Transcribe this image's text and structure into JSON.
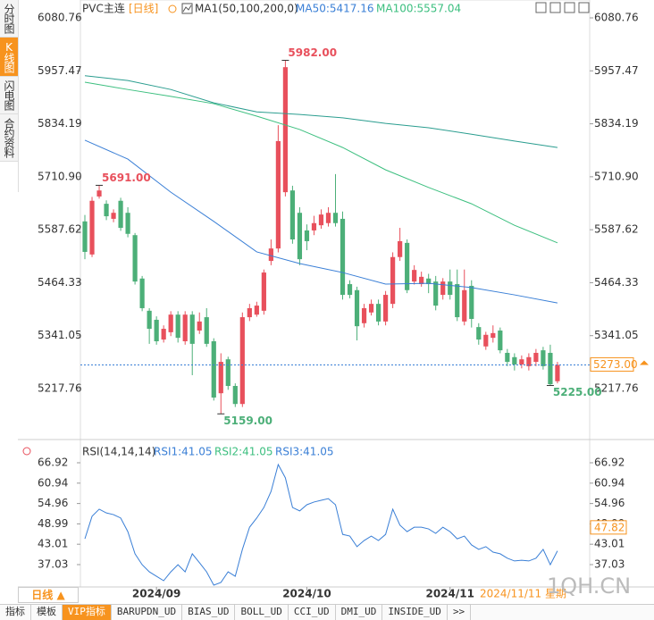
{
  "sidebar_tabs": [
    "分时图",
    "K线图",
    "闪电图",
    "合约资料"
  ],
  "header": {
    "symbol": "PVC主连",
    "period": "[日线]",
    "indicator": "MA1(50,100,200,0)"
  },
  "chart_data": [
    {
      "type": "candlestick",
      "open": [
        5607,
        5530,
        5665,
        5648,
        5613,
        5655,
        5627,
        5575,
        5474,
        5399,
        5378,
        5332,
        5349,
        5390,
        5328,
        5390,
        5353,
        5384,
        5328,
        5207,
        5286,
        5224,
        5182,
        5384,
        5390,
        5399,
        5515,
        5544,
        5675,
        5679,
        5627,
        5586,
        5586,
        5598,
        5603,
        5627,
        5613,
        5461,
        5447,
        5370,
        5395,
        5415,
        5374,
        5415,
        5524,
        5557,
        5467,
        5461,
        5474,
        5467,
        5436,
        5467,
        5461,
        5374,
        5457,
        5361,
        5316,
        5336,
        5353,
        5301,
        5291,
        5274,
        5270,
        5280,
        5307,
        5301,
        5235
      ],
      "high": [
        5622,
        5664,
        5691,
        5656,
        5635,
        5662,
        5640,
        5580,
        5480,
        5405,
        5386,
        5365,
        5398,
        5398,
        5398,
        5398,
        5395,
        5405,
        5335,
        5300,
        5292,
        5230,
        5395,
        5415,
        5420,
        5495,
        5565,
        5831,
        5982,
        5690,
        5640,
        5600,
        5620,
        5635,
        5640,
        5717,
        5630,
        5470,
        5455,
        5415,
        5425,
        5425,
        5445,
        5535,
        5592,
        5565,
        5505,
        5490,
        5485,
        5480,
        5475,
        5495,
        5495,
        5495,
        5470,
        5370,
        5350,
        5365,
        5360,
        5310,
        5300,
        5295,
        5300,
        5310,
        5315,
        5320,
        5280
      ],
      "low": [
        5519,
        5524,
        5660,
        5610,
        5605,
        5585,
        5570,
        5460,
        5398,
        5322,
        5320,
        5325,
        5340,
        5325,
        5320,
        5249,
        5345,
        5315,
        5190,
        5159,
        5215,
        5175,
        5175,
        5375,
        5385,
        5390,
        5505,
        5535,
        5665,
        5555,
        5505,
        5540,
        5575,
        5590,
        5595,
        5595,
        5425,
        5428,
        5330,
        5360,
        5388,
        5365,
        5365,
        5405,
        5515,
        5440,
        5460,
        5455,
        5440,
        5400,
        5425,
        5425,
        5375,
        5365,
        5360,
        5320,
        5308,
        5325,
        5300,
        5270,
        5260,
        5265,
        5260,
        5270,
        5262,
        5225,
        5230
      ],
      "close": [
        5536,
        5655,
        5679,
        5619,
        5627,
        5592,
        5578,
        5467,
        5405,
        5357,
        5328,
        5357,
        5390,
        5336,
        5390,
        5322,
        5374,
        5322,
        5197,
        5280,
        5224,
        5182,
        5384,
        5405,
        5411,
        5488,
        5544,
        5794,
        5966,
        5565,
        5519,
        5561,
        5603,
        5623,
        5627,
        5603,
        5436,
        5436,
        5363,
        5405,
        5415,
        5374,
        5436,
        5524,
        5561,
        5447,
        5494,
        5478,
        5461,
        5411,
        5467,
        5436,
        5384,
        5447,
        5380,
        5332,
        5343,
        5347,
        5307,
        5280,
        5274,
        5286,
        5291,
        5301,
        5270,
        5228,
        5273
      ],
      "up_color": "#e8505c",
      "down_color": "#4caf78",
      "series": [
        {
          "name": "MA50:5417.16",
          "color": "#3a7fd6",
          "x": [
            0,
            6,
            12,
            18,
            24,
            30,
            36,
            42,
            48,
            54,
            60,
            66
          ],
          "values": [
            5796,
            5752,
            5675,
            5607,
            5536,
            5509,
            5488,
            5461,
            5463,
            5453,
            5436,
            5417.16
          ]
        },
        {
          "name": "MA100:5557.04",
          "color": "#3cbf7f",
          "x": [
            0,
            6,
            12,
            18,
            24,
            30,
            36,
            42,
            48,
            54,
            60,
            66
          ],
          "values": [
            5931,
            5914,
            5898,
            5881,
            5852,
            5821,
            5779,
            5727,
            5686,
            5648,
            5598,
            5557.04
          ]
        },
        {
          "color": "#2a9d8f",
          "x": [
            0,
            6,
            12,
            18,
            24,
            30,
            36,
            42,
            48,
            54,
            60,
            66
          ],
          "values": [
            5946,
            5935,
            5914,
            5883,
            5862,
            5856,
            5848,
            5835,
            5825,
            5810,
            5794,
            5779
          ]
        }
      ],
      "ylim": [
        5103.4,
        6111.95
      ],
      "yticks": [
        6080.76,
        5957.47,
        5834.19,
        {
          "value": 5710.9,
          "label": "5710.90"
        },
        5587.62,
        5464.33,
        5341.05,
        5217.76
      ],
      "xlim": [
        -0.5,
        70.5
      ],
      "annotations": [
        {
          "label": "5691.00",
          "value": 5691
        },
        {
          "label": "5982.00",
          "value": 5982
        },
        {
          "label": "5159.00",
          "value": 5159
        },
        {
          "label": "5225.00",
          "value": 5225
        }
      ],
      "last_price": {
        "label": "5273.00",
        "value": 5273
      }
    },
    {
      "type": "line",
      "title": "RSI(14,14,14)",
      "series": [
        {
          "name": "RSI1:41.05",
          "color": "#3a7fd6",
          "values": [
            44.6,
            51.2,
            53.3,
            52.2,
            51.7,
            50.7,
            46.7,
            40.2,
            37.0,
            34.9,
            33.6,
            32.3,
            34.9,
            37.0,
            34.9,
            40.2,
            37.6,
            34.9,
            31.0,
            31.8,
            34.9,
            33.6,
            41.5,
            48.0,
            50.7,
            53.8,
            58.5,
            66.4,
            62.5,
            53.8,
            52.8,
            54.6,
            55.4,
            55.9,
            56.4,
            54.6,
            45.9,
            45.4,
            42.3,
            44.1,
            45.4,
            44.1,
            45.9,
            53.3,
            48.6,
            46.7,
            48.0,
            48.0,
            47.5,
            46.2,
            48.0,
            46.7,
            44.6,
            45.4,
            42.8,
            41.5,
            42.3,
            40.7,
            40.2,
            38.9,
            38.1,
            38.3,
            38.1,
            38.9,
            41.5,
            37.0,
            41.05
          ]
        },
        {
          "name": "RSI2:41.05",
          "color": "#3cbf7f"
        },
        {
          "name": "RSI3:41.05",
          "color": "#3a7fd6"
        }
      ],
      "ylim": [
        30.47,
        72.43
      ],
      "yticks": [
        66.92,
        60.94,
        54.96,
        48.99,
        43.01,
        37.03
      ],
      "xlim": [
        -0.5,
        70.5
      ],
      "xticks": [
        {
          "value": 10,
          "label": "2024/09"
        },
        {
          "value": 31,
          "label": "2024/10"
        },
        {
          "value": 51,
          "label": "2024/11"
        }
      ],
      "last_value": {
        "label": "47.82",
        "value": 47.82
      }
    }
  ],
  "footer": {
    "period_button": "日线",
    "date_status": "2024/11/11 星期",
    "watermark": "1QH.CN",
    "tabs": [
      "指标",
      "模板",
      "VIP指标",
      "BARUPDN_UD",
      "BIAS_UD",
      "BOLL_UD",
      "CCI_UD",
      "DMI_UD",
      "INSIDE_UD",
      ">>"
    ]
  }
}
